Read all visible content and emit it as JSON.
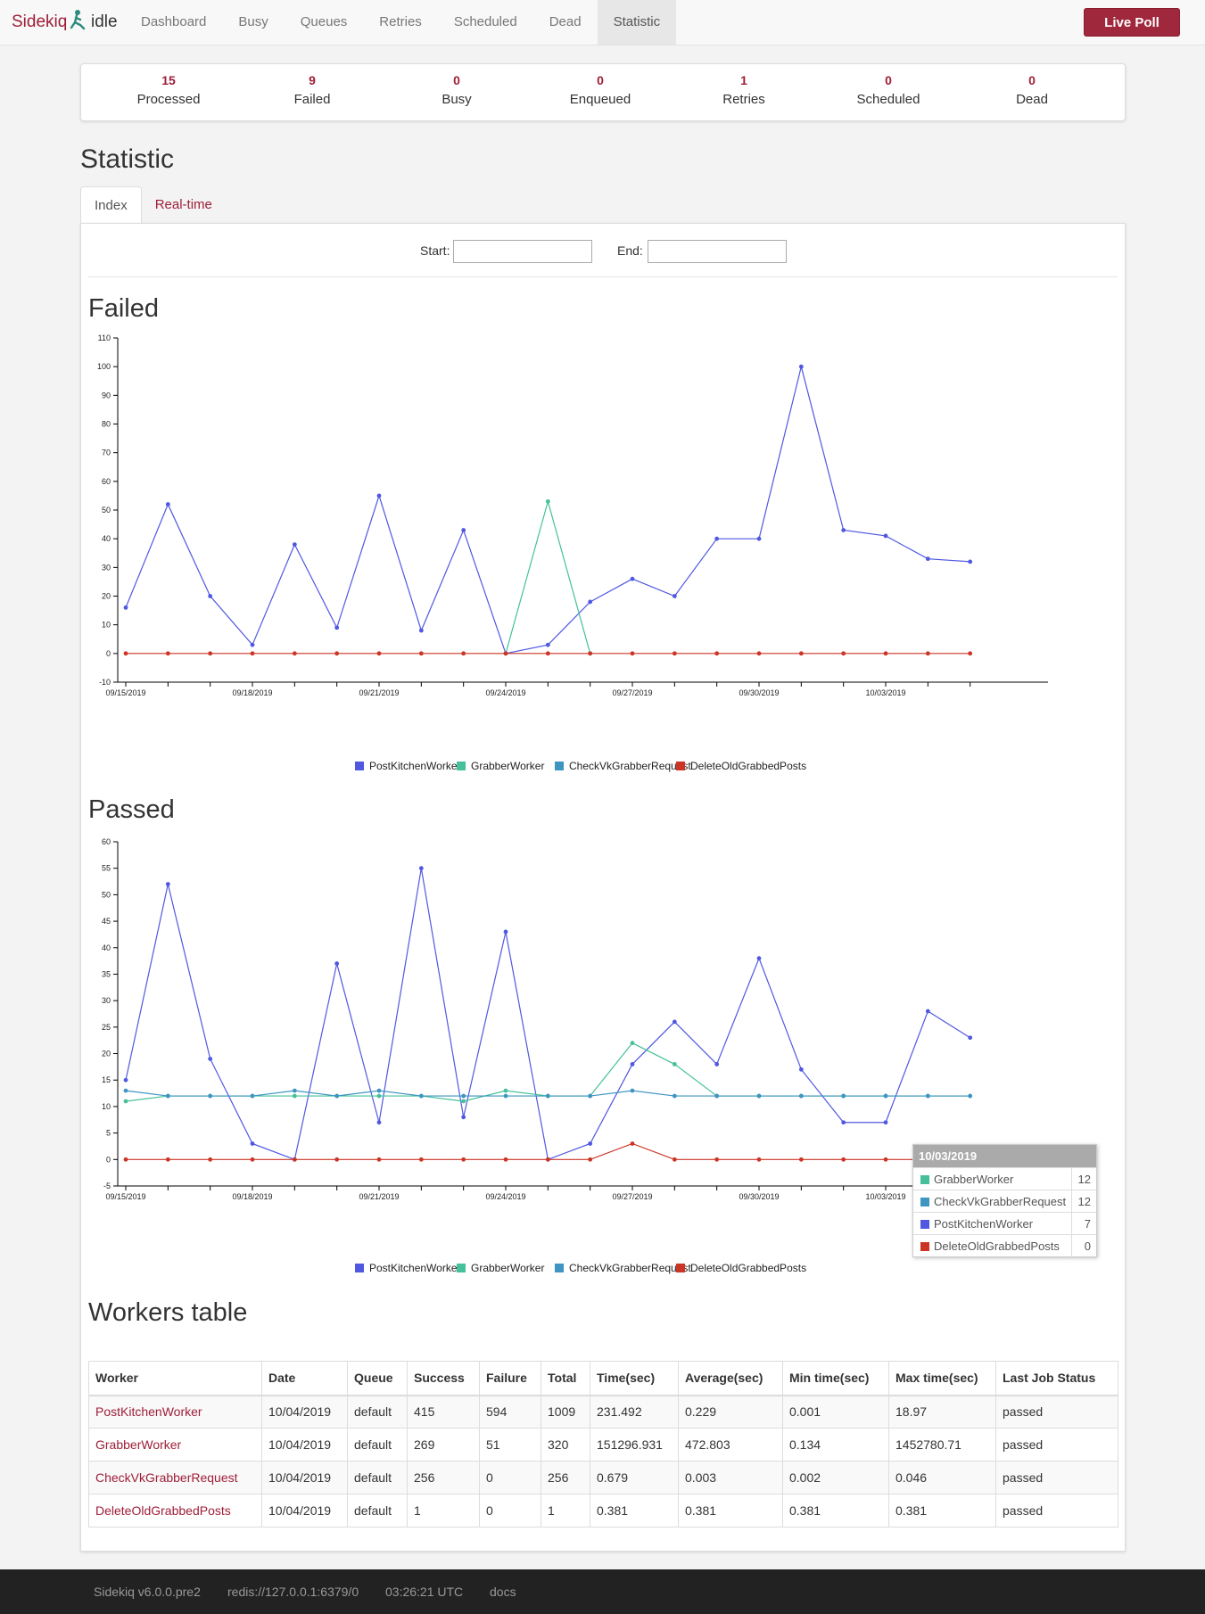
{
  "navbar": {
    "brand": "Sidekiq",
    "status": "idle",
    "items": [
      {
        "label": "Dashboard"
      },
      {
        "label": "Busy"
      },
      {
        "label": "Queues"
      },
      {
        "label": "Retries"
      },
      {
        "label": "Scheduled"
      },
      {
        "label": "Dead"
      },
      {
        "label": "Statistic",
        "active": true
      }
    ],
    "live_poll_label": "Live Poll"
  },
  "summary": [
    {
      "count": "15",
      "label": "Processed"
    },
    {
      "count": "9",
      "label": "Failed"
    },
    {
      "count": "0",
      "label": "Busy"
    },
    {
      "count": "0",
      "label": "Enqueued"
    },
    {
      "count": "1",
      "label": "Retries"
    },
    {
      "count": "0",
      "label": "Scheduled"
    },
    {
      "count": "0",
      "label": "Dead"
    }
  ],
  "page_title": "Statistic",
  "tabs": [
    {
      "label": "Index",
      "active": true
    },
    {
      "label": "Real-time"
    }
  ],
  "filter": {
    "start_label": "Start:",
    "start_value": "",
    "end_label": "End:",
    "end_value": ""
  },
  "colors": {
    "brand": "#9e1e37",
    "PostKitchenWorker": "#5058e2",
    "GrabberWorker": "#45c09a",
    "CheckVkGrabberRequest": "#3e95c2",
    "DeleteOldGrabbedPosts": "#cc3526"
  },
  "chart_data": [
    {
      "type": "line",
      "title": "Failed",
      "x": [
        "09/15/2019",
        "09/16/2019",
        "09/17/2019",
        "09/18/2019",
        "09/19/2019",
        "09/20/2019",
        "09/21/2019",
        "09/22/2019",
        "09/23/2019",
        "09/24/2019",
        "09/25/2019",
        "09/26/2019",
        "09/27/2019",
        "09/28/2019",
        "09/29/2019",
        "09/30/2019",
        "10/01/2019",
        "10/02/2019",
        "10/03/2019",
        "10/04/2019",
        "10/05/2019"
      ],
      "x_tick_labels": [
        "09/15/2019",
        "09/18/2019",
        "09/21/2019",
        "09/24/2019",
        "09/27/2019",
        "09/30/2019",
        "10/03/2019"
      ],
      "ylim": [
        -10,
        110
      ],
      "y_ticks": [
        -10,
        0,
        10,
        20,
        30,
        40,
        50,
        60,
        70,
        80,
        90,
        100,
        110
      ],
      "grid": false,
      "legend_position": "bottom",
      "series": [
        {
          "name": "PostKitchenWorker",
          "values": [
            16,
            52,
            20,
            3,
            38,
            9,
            55,
            8,
            43,
            0,
            3,
            18,
            26,
            20,
            40,
            40,
            100,
            43,
            41,
            33,
            32
          ]
        },
        {
          "name": "GrabberWorker",
          "values": [
            null,
            null,
            null,
            null,
            null,
            null,
            null,
            null,
            null,
            0,
            53,
            0,
            null,
            null,
            null,
            null,
            null,
            null,
            null,
            null,
            null
          ]
        },
        {
          "name": "CheckVkGrabberRequest",
          "values": [
            null,
            null,
            null,
            null,
            null,
            null,
            null,
            null,
            null,
            null,
            null,
            null,
            null,
            null,
            null,
            null,
            null,
            null,
            null,
            null,
            null
          ]
        },
        {
          "name": "DeleteOldGrabbedPosts",
          "values": [
            0,
            0,
            0,
            0,
            0,
            0,
            0,
            0,
            0,
            0,
            0,
            0,
            0,
            0,
            0,
            0,
            0,
            0,
            0,
            0,
            0
          ]
        }
      ]
    },
    {
      "type": "line",
      "title": "Passed",
      "x": [
        "09/15/2019",
        "09/16/2019",
        "09/17/2019",
        "09/18/2019",
        "09/19/2019",
        "09/20/2019",
        "09/21/2019",
        "09/22/2019",
        "09/23/2019",
        "09/24/2019",
        "09/25/2019",
        "09/26/2019",
        "09/27/2019",
        "09/28/2019",
        "09/29/2019",
        "09/30/2019",
        "10/01/2019",
        "10/02/2019",
        "10/03/2019",
        "10/04/2019",
        "10/05/2019"
      ],
      "x_tick_labels": [
        "09/15/2019",
        "09/18/2019",
        "09/21/2019",
        "09/24/2019",
        "09/27/2019",
        "09/30/2019",
        "10/03/2019"
      ],
      "ylim": [
        -5,
        60
      ],
      "y_ticks": [
        -5,
        0,
        5,
        10,
        15,
        20,
        25,
        30,
        35,
        40,
        45,
        50,
        55,
        60
      ],
      "grid": false,
      "legend_position": "bottom",
      "series": [
        {
          "name": "PostKitchenWorker",
          "values": [
            15,
            52,
            19,
            3,
            0,
            37,
            7,
            55,
            8,
            43,
            0,
            3,
            18,
            26,
            18,
            38,
            17,
            7,
            7,
            28,
            23
          ]
        },
        {
          "name": "GrabberWorker",
          "values": [
            11,
            12,
            12,
            12,
            12,
            12,
            12,
            12,
            11,
            13,
            12,
            12,
            22,
            18,
            12,
            12,
            12,
            12,
            12,
            12,
            12
          ]
        },
        {
          "name": "CheckVkGrabberRequest",
          "values": [
            13,
            12,
            12,
            12,
            13,
            12,
            13,
            12,
            12,
            12,
            12,
            12,
            13,
            12,
            12,
            12,
            12,
            12,
            12,
            12,
            12
          ]
        },
        {
          "name": "DeleteOldGrabbedPosts",
          "values": [
            0,
            0,
            0,
            0,
            0,
            0,
            0,
            0,
            0,
            0,
            0,
            0,
            3,
            0,
            0,
            0,
            0,
            0,
            0,
            0,
            0
          ]
        }
      ]
    }
  ],
  "chart_titles": {
    "failed": "Failed",
    "passed": "Passed"
  },
  "tooltip": {
    "title": "10/03/2019",
    "rows": [
      {
        "name": "GrabberWorker",
        "value": "12"
      },
      {
        "name": "CheckVkGrabberRequest",
        "value": "12"
      },
      {
        "name": "PostKitchenWorker",
        "value": "7"
      },
      {
        "name": "DeleteOldGrabbedPosts",
        "value": "0"
      }
    ]
  },
  "workers_title": "Workers table",
  "workers_table": {
    "headers": [
      "Worker",
      "Date",
      "Queue",
      "Success",
      "Failure",
      "Total",
      "Time(sec)",
      "Average(sec)",
      "Min time(sec)",
      "Max time(sec)",
      "Last Job Status"
    ],
    "rows": [
      [
        "PostKitchenWorker",
        "10/04/2019",
        "default",
        "415",
        "594",
        "1009",
        "231.492",
        "0.229",
        "0.001",
        "18.97",
        "passed"
      ],
      [
        "GrabberWorker",
        "10/04/2019",
        "default",
        "269",
        "51",
        "320",
        "151296.931",
        "472.803",
        "0.134",
        "1452780.71",
        "passed"
      ],
      [
        "CheckVkGrabberRequest",
        "10/04/2019",
        "default",
        "256",
        "0",
        "256",
        "0.679",
        "0.003",
        "0.002",
        "0.046",
        "passed"
      ],
      [
        "DeleteOldGrabbedPosts",
        "10/04/2019",
        "default",
        "1",
        "0",
        "1",
        "0.381",
        "0.381",
        "0.381",
        "0.381",
        "passed"
      ]
    ]
  },
  "footer": {
    "version": "Sidekiq v6.0.0.pre2",
    "redis": "redis://127.0.0.1:6379/0",
    "time": "03:26:21 UTC",
    "docs": "docs"
  }
}
